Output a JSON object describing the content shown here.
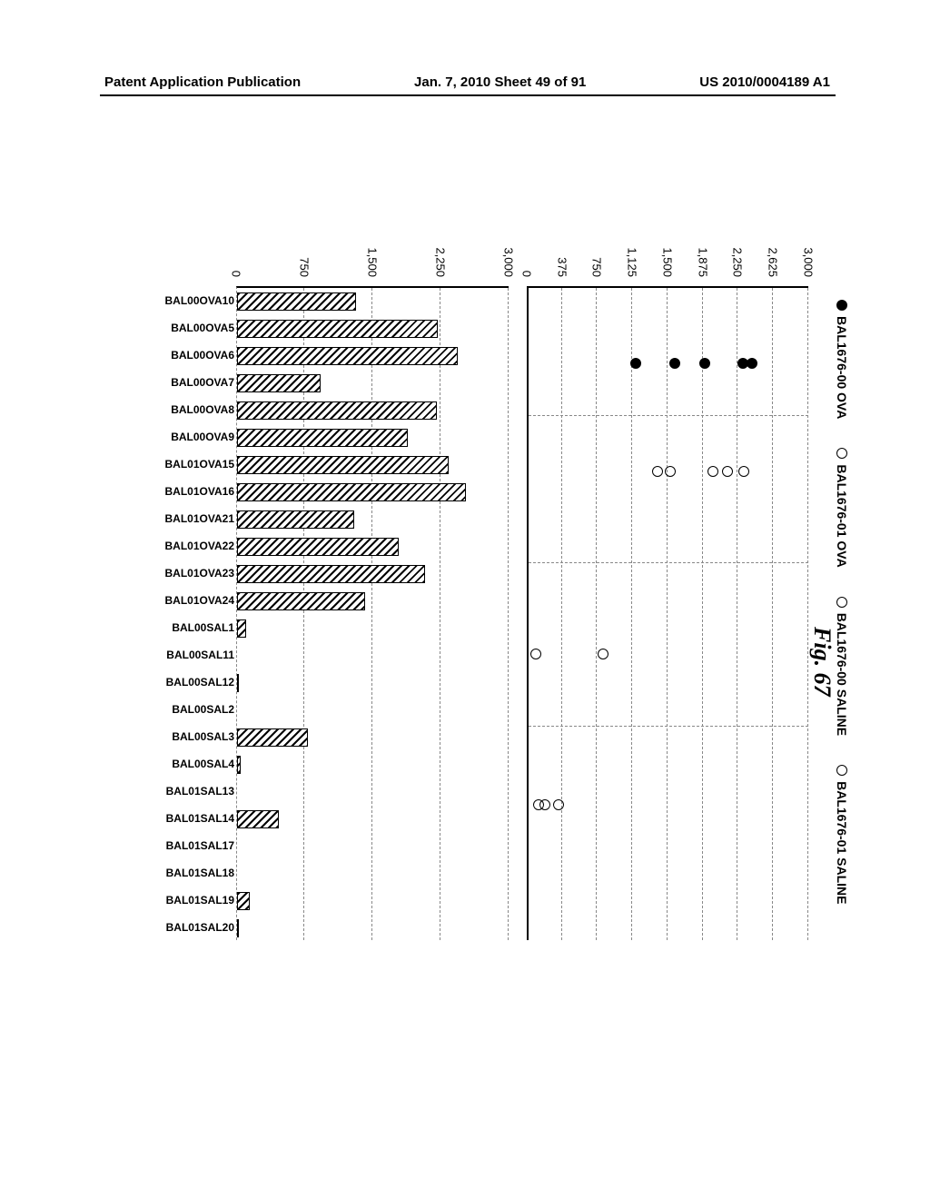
{
  "header": {
    "left": "Patent Application Publication",
    "center": "Jan. 7, 2010  Sheet 49 of 91",
    "right": "US 2010/0004189 A1"
  },
  "figure_label": "Fig. 67",
  "legend": [
    {
      "label": "BAL1676-00 OVA",
      "filled": true
    },
    {
      "label": "BAL1676-01 OVA",
      "filled": false
    },
    {
      "label": "BAL1676-00 SALINE",
      "filled": false
    },
    {
      "label": "BAL1676-01 SALINE",
      "filled": false
    }
  ],
  "scatter": {
    "ymin": 0,
    "ymax": 3000,
    "ystep": 375,
    "yticks": [
      0,
      375,
      750,
      1125,
      1500,
      1875,
      2250,
      2625,
      3000
    ],
    "groups": [
      {
        "x": 0.115,
        "points": [
          {
            "y": 2380,
            "filled": true
          },
          {
            "y": 2280,
            "filled": true
          },
          {
            "y": 1880,
            "filled": true
          },
          {
            "y": 1560,
            "filled": true
          },
          {
            "y": 1140,
            "filled": true
          }
        ]
      },
      {
        "x": 0.28,
        "points": [
          {
            "y": 2290,
            "filled": false
          },
          {
            "y": 2120,
            "filled": false
          },
          {
            "y": 1960,
            "filled": false
          },
          {
            "y": 1510,
            "filled": false
          },
          {
            "y": 1370,
            "filled": false
          }
        ]
      },
      {
        "x": 0.56,
        "points": [
          {
            "y": 790,
            "filled": false
          },
          {
            "y": 80,
            "filled": false
          }
        ]
      },
      {
        "x": 0.79,
        "points": [
          {
            "y": 320,
            "filled": false
          },
          {
            "y": 170,
            "filled": false
          },
          {
            "y": 110,
            "filled": false
          }
        ]
      }
    ],
    "vlines": [
      0.195,
      0.42,
      0.67
    ]
  },
  "bar": {
    "ymin": 0,
    "ymax": 3000,
    "yticks": [
      0,
      750,
      1500,
      2250,
      3000
    ],
    "bars": [
      {
        "label": "BAL00OVA10",
        "value": 1310
      },
      {
        "label": "BAL00OVA5",
        "value": 2210
      },
      {
        "label": "BAL00OVA6",
        "value": 2430
      },
      {
        "label": "BAL00OVA7",
        "value": 920
      },
      {
        "label": "BAL00OVA8",
        "value": 2200
      },
      {
        "label": "BAL00OVA9",
        "value": 1880
      },
      {
        "label": "BAL01OVA15",
        "value": 2330
      },
      {
        "label": "BAL01OVA16",
        "value": 2520
      },
      {
        "label": "BAL01OVA21",
        "value": 1290
      },
      {
        "label": "BAL01OVA22",
        "value": 1780
      },
      {
        "label": "BAL01OVA23",
        "value": 2070
      },
      {
        "label": "BAL01OVA24",
        "value": 1410
      },
      {
        "label": "BAL00SAL1",
        "value": 100
      },
      {
        "label": "BAL00SAL11",
        "value": 0
      },
      {
        "label": "BAL00SAL12",
        "value": 20
      },
      {
        "label": "BAL00SAL2",
        "value": 0
      },
      {
        "label": "BAL00SAL3",
        "value": 780
      },
      {
        "label": "BAL00SAL4",
        "value": 40
      },
      {
        "label": "BAL01SAL13",
        "value": 0
      },
      {
        "label": "BAL01SAL14",
        "value": 460
      },
      {
        "label": "BAL01SAL17",
        "value": 0
      },
      {
        "label": "BAL01SAL18",
        "value": 0
      },
      {
        "label": "BAL01SAL19",
        "value": 140
      },
      {
        "label": "BAL01SAL20",
        "value": 20
      }
    ]
  },
  "colors": {
    "ink": "#000000",
    "grid": "#888888",
    "bg": "#ffffff"
  }
}
